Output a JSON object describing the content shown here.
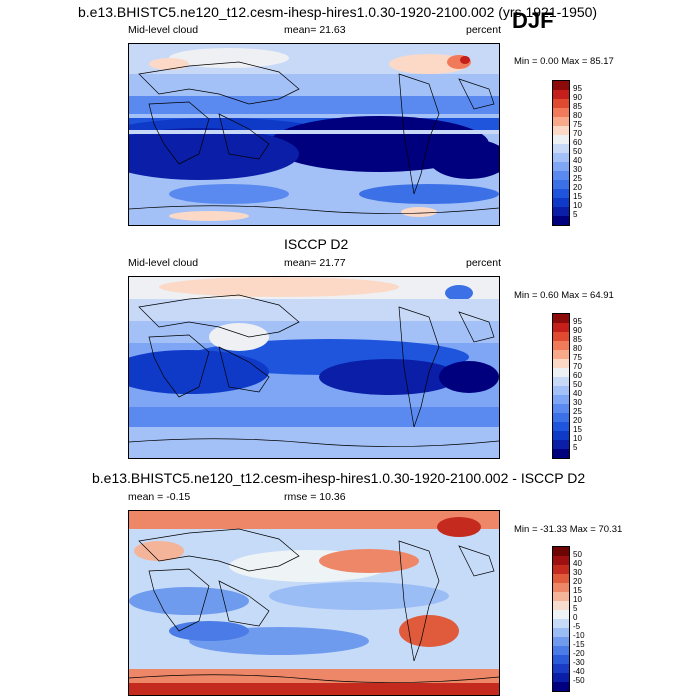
{
  "header": {
    "run_title": "b.e13.BHISTC5.ne120_t12.cesm-ihesp-hires1.0.30-1920-2100.002 (yrs 1921-1950)",
    "season": "DJF"
  },
  "chart_data": [
    {
      "type": "heatmap",
      "title": "",
      "left_label": "Mid-level cloud",
      "center_label": "mean=  21.63",
      "right_label": "percent",
      "minmax": "Min =   0.00 Max =  85.17",
      "levels": [
        "5",
        "10",
        "15",
        "20",
        "25",
        "30",
        "40",
        "50",
        "60",
        "70",
        "75",
        "80",
        "85",
        "90",
        "95"
      ],
      "colors": [
        "#00007f",
        "#0a1ea8",
        "#0f3ac8",
        "#1f55dc",
        "#3b70e6",
        "#5a8aef",
        "#7ea6f4",
        "#a3c1f7",
        "#c8d9f8",
        "#eef0f3",
        "#fbd9c6",
        "#f7a98a",
        "#f07a5a",
        "#e04a30",
        "#c41f1a",
        "#8c0a0a"
      ]
    },
    {
      "type": "heatmap",
      "title": "ISCCP D2",
      "left_label": "Mid-level cloud",
      "center_label": "mean=  21.77",
      "right_label": "percent",
      "minmax": "Min =   0.60 Max =  64.91",
      "levels": [
        "5",
        "10",
        "15",
        "20",
        "25",
        "30",
        "40",
        "50",
        "60",
        "70",
        "75",
        "80",
        "85",
        "90",
        "95"
      ],
      "colors": [
        "#00007f",
        "#0a1ea8",
        "#0f3ac8",
        "#1f55dc",
        "#3b70e6",
        "#5a8aef",
        "#7ea6f4",
        "#a3c1f7",
        "#c8d9f8",
        "#eef0f3",
        "#fbd9c6",
        "#f7a98a",
        "#f07a5a",
        "#e04a30",
        "#c41f1a",
        "#8c0a0a"
      ]
    },
    {
      "type": "heatmap",
      "title": "b.e13.BHISTC5.ne120_t12.cesm-ihesp-hires1.0.30-1920-2100.002 - ISCCP D2",
      "left_label": "mean =  -0.15",
      "center_label": "rmse =  10.36",
      "right_label": "",
      "minmax": "Min = -31.33 Max =  70.31",
      "levels": [
        "-50",
        "-40",
        "-30",
        "-20",
        "-15",
        "-10",
        "-5",
        "0",
        "5",
        "10",
        "15",
        "20",
        "30",
        "40",
        "50"
      ],
      "colors": [
        "#000080",
        "#0a1ea8",
        "#1a3cc4",
        "#2b5bd8",
        "#4a7be6",
        "#6f9bef",
        "#9bbdf5",
        "#c6dbf8",
        "#eef3f6",
        "#f6dccd",
        "#f4b49a",
        "#ee8767",
        "#e05a3c",
        "#c52a1e",
        "#9e1010",
        "#6e0505"
      ]
    }
  ]
}
